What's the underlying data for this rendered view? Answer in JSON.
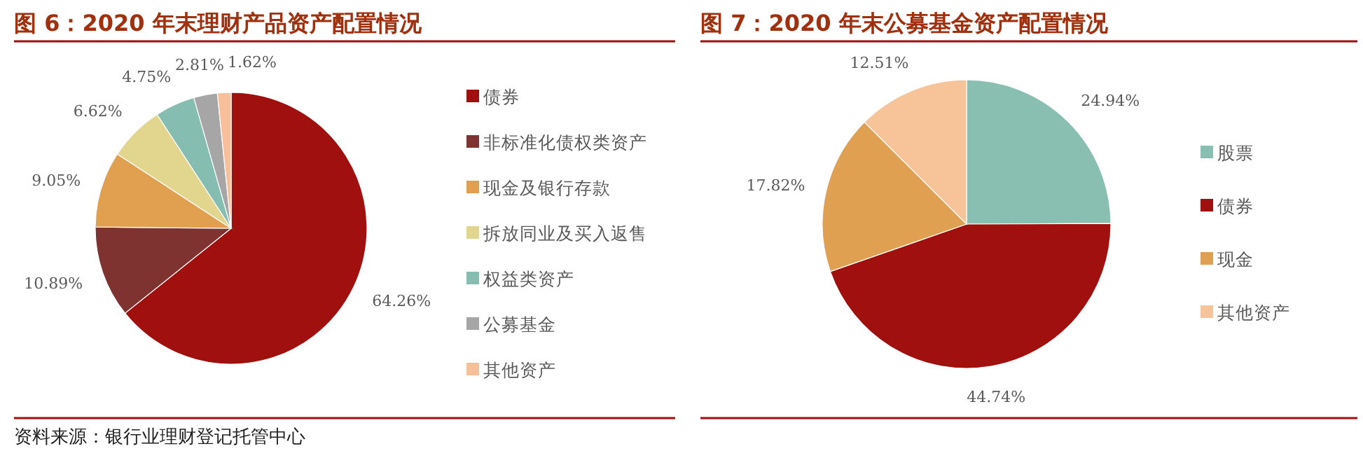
{
  "chart_data": [
    {
      "type": "pie",
      "title": "图 6：2020 年末理财产品资产配置情况",
      "categories": [
        "债券",
        "非标准化债权类资产",
        "现金及银行存款",
        "拆放同业及买入返售",
        "权益类资产",
        "公募基金",
        "其他资产"
      ],
      "values": [
        64.26,
        10.89,
        9.05,
        6.62,
        4.75,
        2.81,
        1.62
      ],
      "value_labels": [
        "64.26%",
        "10.89%",
        "9.05%",
        "6.62%",
        "4.75%",
        "2.81%",
        "1.62%"
      ],
      "colors": [
        "#a0100e",
        "#7f3330",
        "#e0a050",
        "#e2d68f",
        "#85bdb0",
        "#a6a6a6",
        "#f7c09a"
      ],
      "legend": "right",
      "annotations": [
        "资料来源：银行业理财登记托管中心"
      ]
    },
    {
      "type": "pie",
      "title": "图 7：2020 年末公募基金资产配置情况",
      "categories": [
        "股票",
        "债券",
        "现金",
        "其他资产"
      ],
      "values": [
        24.94,
        44.74,
        17.82,
        12.51
      ],
      "value_labels": [
        "24.94%",
        "44.74%",
        "17.82%",
        "12.51%"
      ],
      "colors": [
        "#88bfb0",
        "#a0100e",
        "#dfa052",
        "#f7c398"
      ],
      "legend": "right"
    }
  ]
}
